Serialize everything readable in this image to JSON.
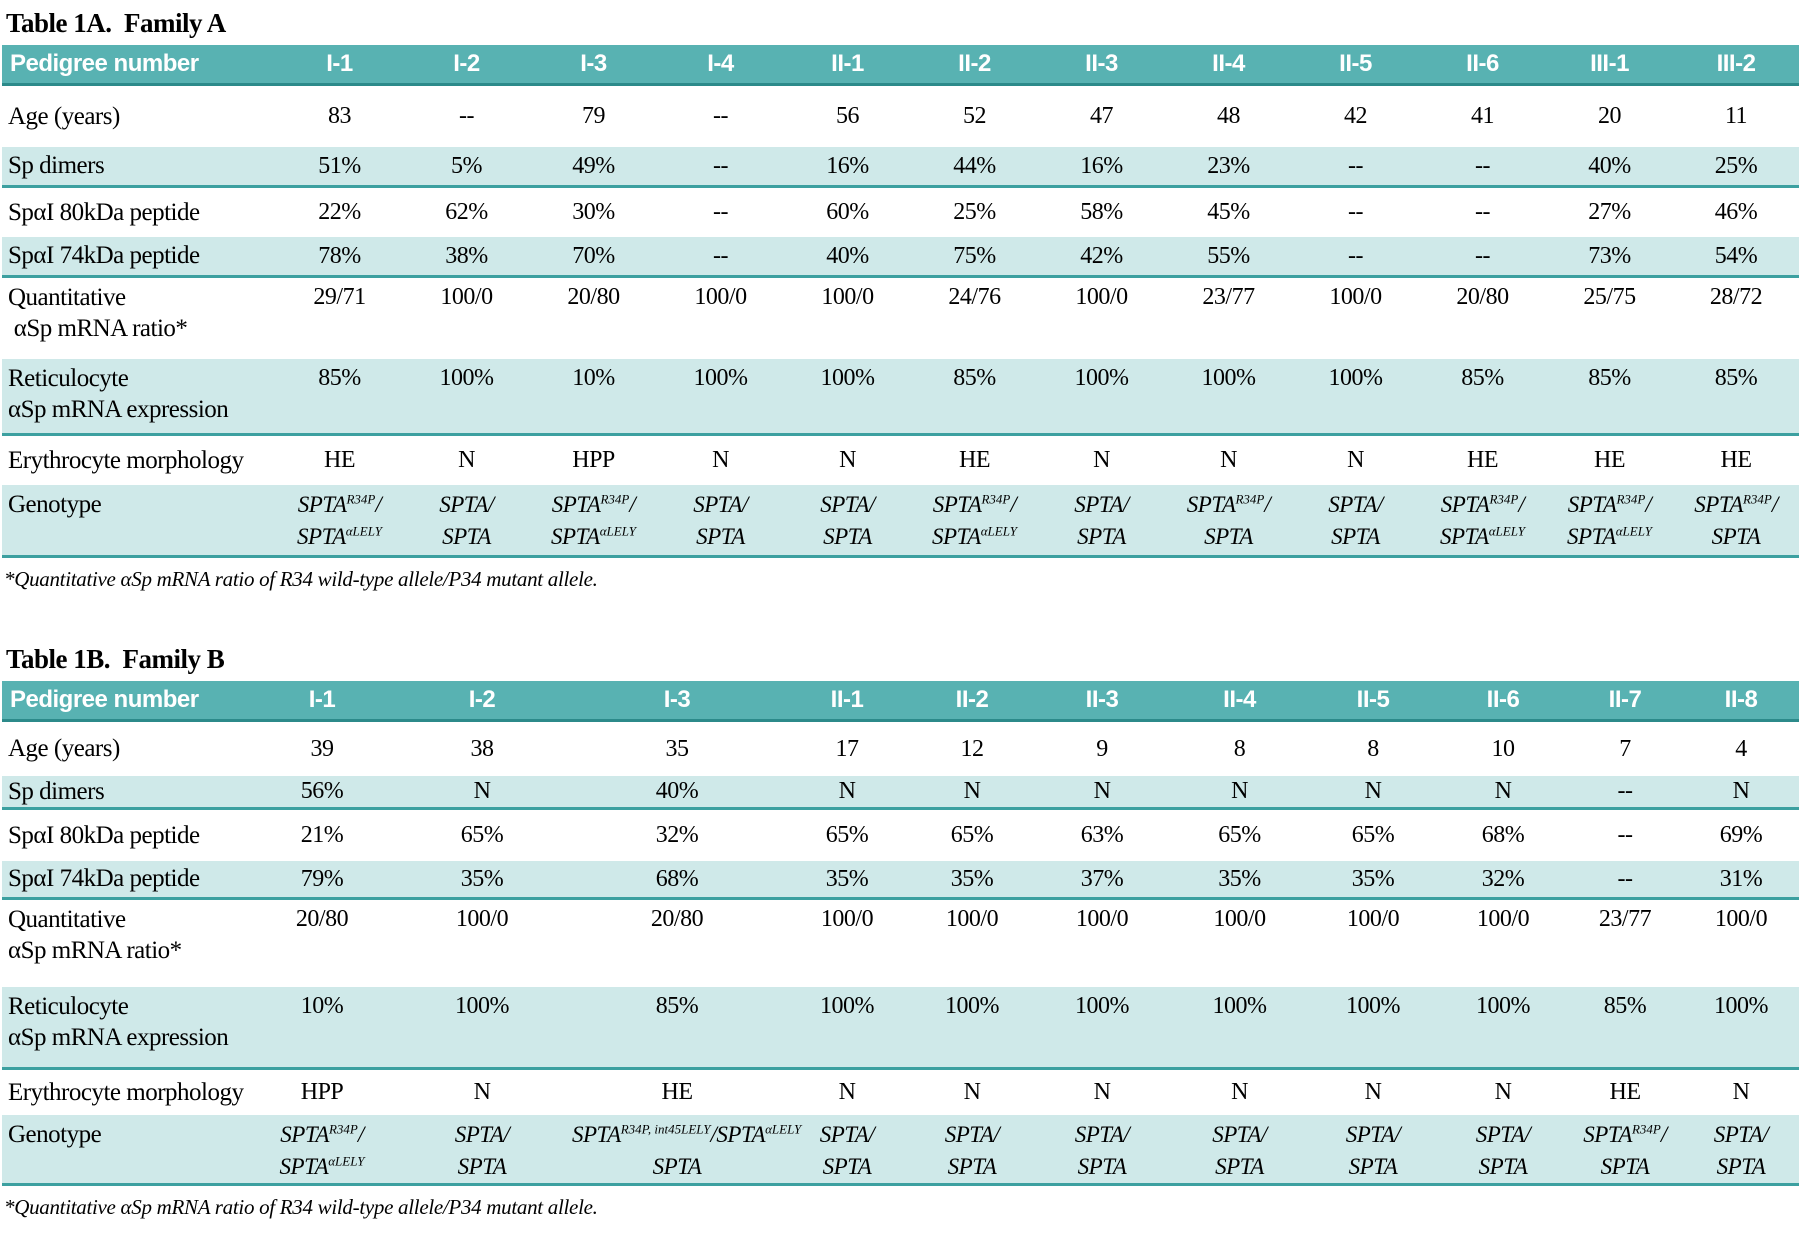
{
  "colors": {
    "header_teal": "#58b2b2",
    "header_edge": "#2c8a8a",
    "row_teal": "#cfe9e9",
    "rule_teal": "#3ca0a0",
    "header_text": "#ffffff",
    "body_text": "#000000"
  },
  "tables": [
    {
      "title": "Table 1A.  Family A",
      "corner_label": "Pedigree number",
      "columns": [
        "I-1",
        "I-2",
        "I-3",
        "I-4",
        "II-1",
        "II-2",
        "II-3",
        "II-4",
        "II-5",
        "II-6",
        "III-1",
        "III-2"
      ],
      "rows": [
        {
          "label_lines": [
            "Age (years)"
          ],
          "values": [
            "83",
            "--",
            "79",
            "--",
            "56",
            "52",
            "47",
            "48",
            "42",
            "41",
            "20",
            "11"
          ]
        },
        {
          "label_lines": [
            "Sp dimers"
          ],
          "values": [
            "51%",
            "5%",
            "49%",
            "--",
            "16%",
            "44%",
            "16%",
            "23%",
            "--",
            "--",
            "40%",
            "25%"
          ]
        },
        {
          "label_lines": [
            "SpαI 80kDa peptide"
          ],
          "values": [
            "22%",
            "62%",
            "30%",
            "--",
            "60%",
            "25%",
            "58%",
            "45%",
            "--",
            "--",
            "27%",
            "46%"
          ]
        },
        {
          "label_lines": [
            "SpαI 74kDa peptide"
          ],
          "values": [
            "78%",
            "38%",
            "70%",
            "--",
            "40%",
            "75%",
            "42%",
            "55%",
            "--",
            "--",
            "73%",
            "54%"
          ]
        },
        {
          "label_lines": [
            "Quantitative",
            " αSp mRNA ratio*"
          ],
          "values": [
            "29/71",
            "100/0",
            "20/80",
            "100/0",
            "100/0",
            "24/76",
            "100/0",
            "23/77",
            "100/0",
            "20/80",
            "25/75",
            "28/72"
          ]
        },
        {
          "label_lines": [
            "Reticulocyte",
            "αSp mRNA expression"
          ],
          "values": [
            "85%",
            "100%",
            "10%",
            "100%",
            "100%",
            "85%",
            "100%",
            "100%",
            "100%",
            "85%",
            "85%",
            "85%"
          ]
        },
        {
          "label_lines": [
            "Erythrocyte morphology"
          ],
          "values": [
            "HE",
            "N",
            "HPP",
            "N",
            "N",
            "HE",
            "N",
            "N",
            "N",
            "HE",
            "HE",
            "HE"
          ]
        },
        {
          "label_lines": [
            "Genotype"
          ],
          "genotype": true,
          "values": [
            "SPTA^{R34P}/|SPTA^{αLELY}",
            "SPTA/|SPTA",
            "SPTA^{R34P}/|SPTA^{αLELY}",
            "SPTA/|SPTA",
            "SPTA/|SPTA",
            "SPTA^{R34P}/|SPTA^{αLELY}",
            "SPTA/|SPTA",
            "SPTA^{R34P}/|SPTA",
            "SPTA/|SPTA",
            "SPTA^{R34P}/|SPTA^{αLELY}",
            "SPTA^{R34P}/|SPTA^{αLELY}",
            "SPTA^{R34P}/|SPTA"
          ]
        }
      ],
      "footnote": "*Quantitative αSp mRNA ratio of R34 wild-type allele/P34 mutant allele."
    },
    {
      "title": "Table 1B.  Family B",
      "corner_label": "Pedigree number",
      "columns": [
        "I-1",
        "I-2",
        "I-3",
        "II-1",
        "II-2",
        "II-3",
        "II-4",
        "II-5",
        "II-6",
        "II-7",
        "II-8"
      ],
      "rows": [
        {
          "label_lines": [
            "Age (years)"
          ],
          "values": [
            "39",
            "38",
            "35",
            "17",
            "12",
            "9",
            "8",
            "8",
            "10",
            "7",
            "4"
          ]
        },
        {
          "label_lines": [
            "Sp dimers"
          ],
          "values": [
            "56%",
            "N",
            "40%",
            "N",
            "N",
            "N",
            "N",
            "N",
            "N",
            "--",
            "N"
          ]
        },
        {
          "label_lines": [
            "SpαI 80kDa peptide"
          ],
          "values": [
            "21%",
            "65%",
            "32%",
            "65%",
            "65%",
            "63%",
            "65%",
            "65%",
            "68%",
            "--",
            "69%"
          ]
        },
        {
          "label_lines": [
            "SpαI 74kDa peptide"
          ],
          "values": [
            "79%",
            "35%",
            "68%",
            "35%",
            "35%",
            "37%",
            "35%",
            "35%",
            "32%",
            "--",
            "31%"
          ]
        },
        {
          "label_lines": [
            "Quantitative",
            "αSp mRNA ratio*"
          ],
          "values": [
            "20/80",
            "100/0",
            "20/80",
            "100/0",
            "100/0",
            "100/0",
            "100/0",
            "100/0",
            "100/0",
            "23/77",
            "100/0"
          ]
        },
        {
          "label_lines": [
            "Reticulocyte",
            "αSp mRNA expression"
          ],
          "values": [
            "10%",
            "100%",
            "85%",
            "100%",
            "100%",
            "100%",
            "100%",
            "100%",
            "100%",
            "85%",
            "100%"
          ]
        },
        {
          "label_lines": [
            "Erythrocyte morphology"
          ],
          "values": [
            "HPP",
            "N",
            "HE",
            "N",
            "N",
            "N",
            "N",
            "N",
            "N",
            "HE",
            "N"
          ]
        },
        {
          "label_lines": [
            "Genotype"
          ],
          "genotype": true,
          "values": [
            "SPTA^{R34P}/|SPTA^{αLELY}",
            "SPTA/|SPTA",
            "SPTA^{R34P, int45LELY}/SPTA^{αLELY}|SPTA",
            "SPTA/|SPTA",
            "SPTA/|SPTA",
            "SPTA/|SPTA",
            "SPTA/|SPTA",
            "SPTA/|SPTA",
            "SPTA/|SPTA",
            "SPTA^{R34P}/|SPTA",
            "SPTA/|SPTA"
          ]
        }
      ],
      "footnote": "*Quantitative αSp mRNA ratio of R34 wild-type allele/P34 mutant allele."
    }
  ]
}
